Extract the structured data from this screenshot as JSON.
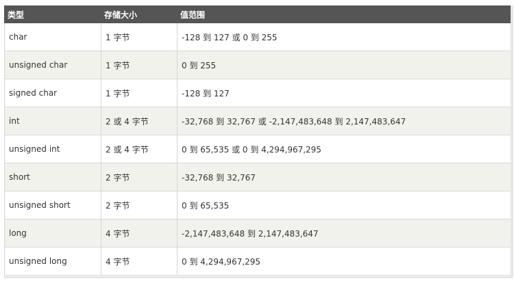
{
  "table": {
    "headers": [
      "类型",
      "存储大小",
      "值范围"
    ],
    "rows": [
      [
        "char",
        "1 字节",
        "-128 到 127 或 0 到 255"
      ],
      [
        "unsigned char",
        "1 字节",
        "0 到 255"
      ],
      [
        "signed char",
        "1 字节",
        "-128 到 127"
      ],
      [
        "int",
        "2 或 4 字节",
        "-32,768 到 32,767 或 -2,147,483,648 到 2,147,483,647"
      ],
      [
        "unsigned int",
        "2 或 4 字节",
        "0 到 65,535 或 0 到 4,294,967,295"
      ],
      [
        "short",
        "2 字节",
        "-32,768 到 32,767"
      ],
      [
        "unsigned short",
        "2 字节",
        "0 到 65,535"
      ],
      [
        "long",
        "4 字节",
        "-2,147,483,648 到 2,147,483,647"
      ],
      [
        "unsigned long",
        "4 字节",
        "0 到 4,294,967,295"
      ]
    ]
  },
  "colors": {
    "header_bg": "#555555",
    "header_text": "#ffffff",
    "row_alt_bg": "#f2f2ed",
    "border": "#d6d6d6",
    "text": "#333333"
  }
}
